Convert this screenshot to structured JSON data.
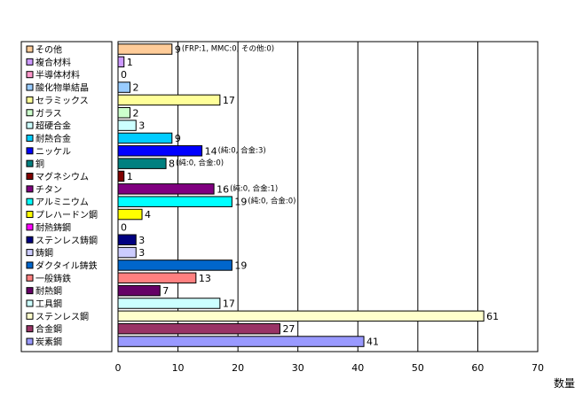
{
  "chart_data": {
    "type": "bar",
    "orientation": "horizontal",
    "categories": [
      "その他",
      "複合材料",
      "半導体材料",
      "酸化物単結晶",
      "セラミックス",
      "ガラス",
      "超硬合金",
      "耐熱合金",
      "ニッケル",
      "銅",
      "マグネシウム",
      "チタン",
      "アルミニウム",
      "プレハードン鋼",
      "耐熱鋳鋼",
      "ステンレス鋳鋼",
      "鋳鋼",
      "ダクタイル鋳鉄",
      "一般鋳鉄",
      "耐熱鋼",
      "工具鋼",
      "ステンレス鋼",
      "合金鋼",
      "炭素鋼"
    ],
    "values": [
      9,
      1,
      0,
      2,
      17,
      2,
      3,
      9,
      14,
      8,
      1,
      16,
      19,
      4,
      0,
      3,
      3,
      19,
      13,
      7,
      17,
      61,
      27,
      41
    ],
    "value_labels": [
      "9",
      "1",
      "0",
      "2",
      "17",
      "2",
      "3",
      "9",
      "14",
      "8",
      "1",
      "16",
      "19",
      "4",
      "0",
      "3",
      "3",
      "19",
      "13",
      "7",
      "17",
      "61",
      "27",
      "41"
    ],
    "colors": [
      "#FFCC99",
      "#CC99FF",
      "#FF99CC",
      "#99CCFF",
      "#FFFF99",
      "#CCFFCC",
      "#CCFFFF",
      "#00CCFF",
      "#0000FF",
      "#008080",
      "#800000",
      "#800080",
      "#00FFFF",
      "#FFFF00",
      "#FF00FF",
      "#000080",
      "#CCCCFF",
      "#0066CC",
      "#FF8080",
      "#660066",
      "#CCFFFF",
      "#FFFFCC",
      "#993366",
      "#9999FF"
    ],
    "annotations": [
      {
        "category": "その他",
        "text": "(FRP:1, MMC:0, その他:0)"
      },
      {
        "category": "ニッケル",
        "text": "(純:0, 合金:3)"
      },
      {
        "category": "銅",
        "text": "(純:0, 合金:0)"
      },
      {
        "category": "チタン",
        "text": "(純:0, 合金:1)"
      },
      {
        "category": "アルミニウム",
        "text": "(純:0, 合金:0)"
      }
    ],
    "xlim": [
      0,
      70
    ],
    "xticks": [
      0,
      10,
      20,
      30,
      40,
      50,
      60,
      70
    ],
    "xlabel": "数量",
    "title": "",
    "grid": "vertical",
    "legend_position": "left"
  }
}
